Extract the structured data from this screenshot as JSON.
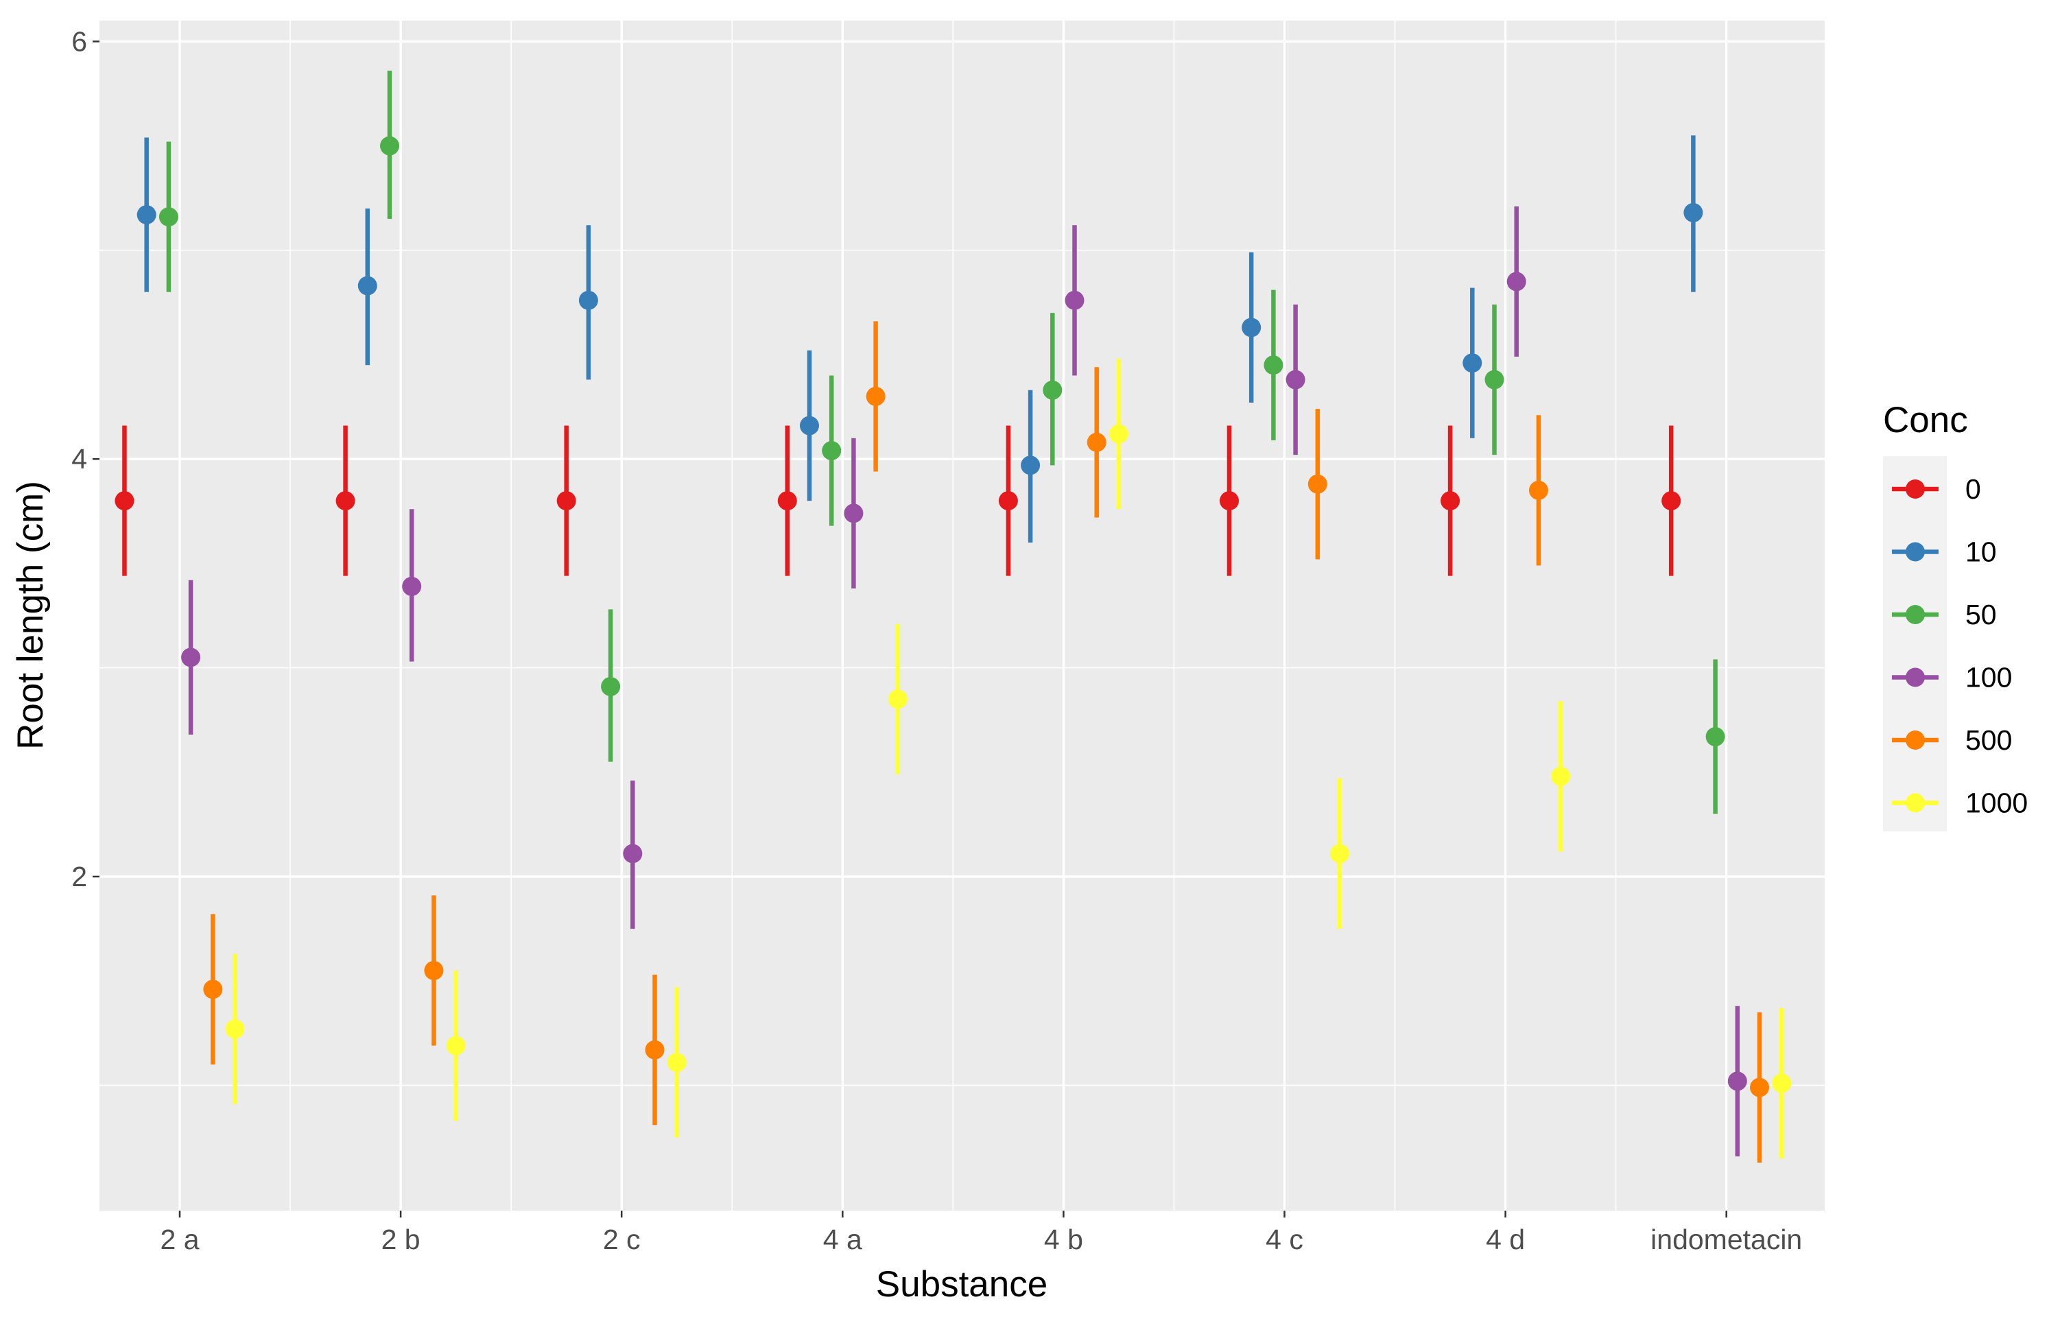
{
  "chart_data": {
    "type": "scatter",
    "subtype": "pointrange",
    "title": "",
    "xlabel": "Substance",
    "ylabel": "Root length (cm)",
    "categories": [
      "2 a",
      "2 b",
      "2 c",
      "4 a",
      "4 b",
      "4 c",
      "4 d",
      "indometacin"
    ],
    "ylim": [
      0.4,
      6.1
    ],
    "yticks": [
      2,
      4,
      6
    ],
    "grid": true,
    "legend": {
      "title": "Conc",
      "position": "right"
    },
    "series": [
      {
        "name": "0",
        "color": "#E41A1C",
        "values": [
          3.8,
          3.8,
          3.8,
          3.8,
          3.8,
          3.8,
          3.8,
          3.8
        ],
        "lower": [
          3.44,
          3.44,
          3.44,
          3.44,
          3.44,
          3.44,
          3.44,
          3.44
        ],
        "upper": [
          4.16,
          4.16,
          4.16,
          4.16,
          4.16,
          4.16,
          4.16,
          4.16
        ]
      },
      {
        "name": "10",
        "color": "#377EB8",
        "values": [
          5.17,
          4.83,
          4.76,
          4.16,
          3.97,
          4.63,
          4.46,
          5.18
        ],
        "lower": [
          4.8,
          4.45,
          4.38,
          3.8,
          3.6,
          4.27,
          4.1,
          4.8
        ],
        "upper": [
          5.54,
          5.2,
          5.12,
          4.52,
          4.33,
          4.99,
          4.82,
          5.55
        ]
      },
      {
        "name": "50",
        "color": "#4DAF4A",
        "values": [
          5.16,
          5.5,
          2.91,
          4.04,
          4.33,
          4.45,
          4.38,
          2.67
        ],
        "lower": [
          4.8,
          5.15,
          2.55,
          3.68,
          3.97,
          4.09,
          4.02,
          2.3
        ],
        "upper": [
          5.52,
          5.86,
          3.28,
          4.4,
          4.7,
          4.81,
          4.74,
          3.04
        ]
      },
      {
        "name": "100",
        "color": "#984EA3",
        "values": [
          3.05,
          3.39,
          2.11,
          3.74,
          4.76,
          4.38,
          4.85,
          1.02
        ],
        "lower": [
          2.68,
          3.03,
          1.75,
          3.38,
          4.4,
          4.02,
          4.49,
          0.66
        ],
        "upper": [
          3.42,
          3.76,
          2.46,
          4.1,
          5.12,
          4.74,
          5.21,
          1.38
        ]
      },
      {
        "name": "500",
        "color": "#FF7F00",
        "values": [
          1.46,
          1.55,
          1.17,
          4.3,
          4.08,
          3.88,
          3.85,
          0.99
        ],
        "lower": [
          1.1,
          1.19,
          0.81,
          3.94,
          3.72,
          3.52,
          3.49,
          0.63
        ],
        "upper": [
          1.82,
          1.91,
          1.53,
          4.66,
          4.44,
          4.24,
          4.21,
          1.35
        ]
      },
      {
        "name": "1000",
        "color": "#FFFF33",
        "values": [
          1.27,
          1.19,
          1.11,
          2.85,
          4.12,
          2.11,
          2.48,
          1.01
        ],
        "lower": [
          0.91,
          0.83,
          0.75,
          2.49,
          3.76,
          1.75,
          2.12,
          0.65
        ],
        "upper": [
          1.63,
          1.55,
          1.47,
          3.21,
          4.48,
          2.47,
          2.84,
          1.37
        ]
      }
    ],
    "dodge_width": 0.1
  }
}
